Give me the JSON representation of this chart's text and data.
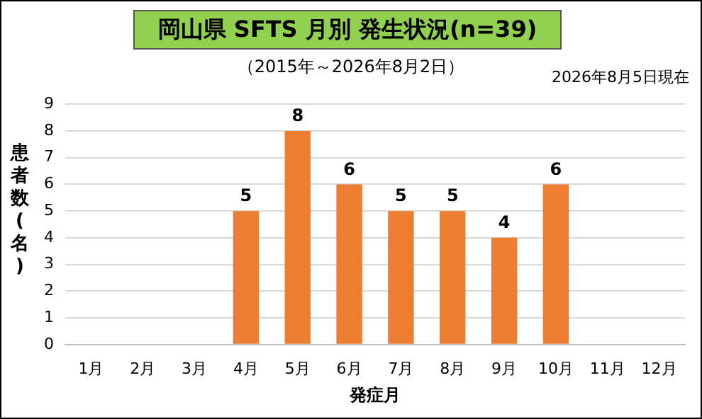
{
  "chart_data": {
    "type": "bar",
    "title": "岡山県 SFTS 月別 発生状況(n=39)",
    "subtitle": "（2015年～2026年8月2日）",
    "annotations": [
      "2026年8月5日現在"
    ],
    "xlabel": "発症月",
    "ylabel": "患者数(名)",
    "categories": [
      "1月",
      "2月",
      "3月",
      "4月",
      "5月",
      "6月",
      "7月",
      "8月",
      "9月",
      "10月",
      "11月",
      "12月"
    ],
    "values": [
      0,
      0,
      0,
      5,
      8,
      6,
      5,
      5,
      4,
      6,
      0,
      0
    ],
    "value_labels": [
      null,
      null,
      null,
      "5",
      "8",
      "6",
      "5",
      "5",
      "4",
      "6",
      null,
      null
    ],
    "color": "#ed7d31",
    "ylim": [
      0,
      9
    ],
    "yticks": [
      0,
      1,
      2,
      3,
      4,
      5,
      6,
      7,
      8,
      9
    ],
    "grid": "y",
    "legend": false
  }
}
